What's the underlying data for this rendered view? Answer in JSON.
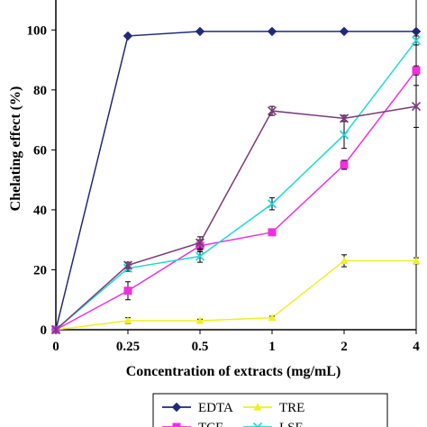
{
  "chart_data": {
    "type": "line",
    "x": [
      "0",
      "0.25",
      "0.5",
      "1",
      "2",
      "4"
    ],
    "xlabel": "Concentration of extracts (mg/mL)",
    "ylabel": "Chelating effect (%)",
    "ylim": [
      0,
      110
    ],
    "yticks": [
      "0",
      "20",
      "40",
      "60",
      "80",
      "100"
    ],
    "grid": false,
    "legend_position": "bottom",
    "series": [
      {
        "name": "EDTA",
        "color": "#1f2a78",
        "marker": "diamond",
        "values": [
          0,
          98,
          99.5,
          99.5,
          99.5,
          99.5
        ],
        "errors": [
          0,
          0,
          0,
          0,
          0,
          0
        ]
      },
      {
        "name": "TRE",
        "color": "#f0f020",
        "marker": "triangle",
        "values": [
          0,
          3,
          3,
          4,
          23,
          23
        ],
        "errors": [
          0,
          1,
          0.5,
          0.5,
          2,
          1
        ]
      },
      {
        "name": "TCE",
        "color": "#f030e0",
        "marker": "square",
        "values": [
          0,
          13,
          28,
          32.5,
          55,
          86.5
        ],
        "errors": [
          0,
          3,
          2,
          1,
          1.5,
          1.5
        ]
      },
      {
        "name": "LSE",
        "color": "#20d8d8",
        "marker": "x",
        "values": [
          0,
          20.5,
          24.5,
          42,
          65,
          96.5
        ],
        "errors": [
          0,
          1,
          2,
          2,
          4.5,
          1.5
        ]
      },
      {
        "name": "",
        "color": "#7a3a7a",
        "marker": "star",
        "values": [
          0,
          21.5,
          29,
          73,
          70.5,
          74.5
        ],
        "errors": [
          0,
          1,
          2,
          1.5,
          1,
          7
        ]
      }
    ]
  }
}
